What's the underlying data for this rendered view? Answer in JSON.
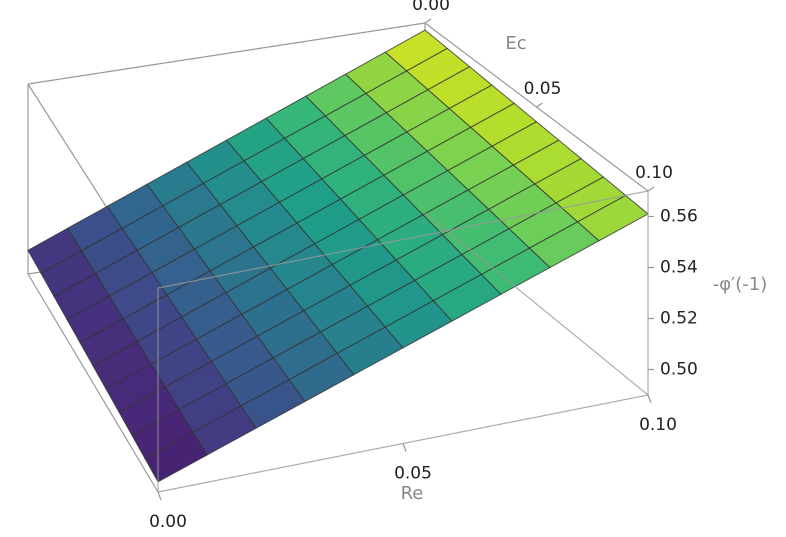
{
  "chart_data": {
    "type": "surface",
    "xlabel": "Re",
    "ylabel": "Ec",
    "zlabel": "-φ′(-1)",
    "x": [
      0,
      0.01,
      0.02,
      0.03,
      0.04,
      0.05,
      0.06,
      0.07,
      0.08,
      0.09,
      0.1
    ],
    "y": [
      0,
      0.01,
      0.02,
      0.03,
      0.04,
      0.05,
      0.06,
      0.07,
      0.08,
      0.09,
      0.1
    ],
    "z": [
      [
        0.5,
        0.5067,
        0.5134,
        0.5201,
        0.5268,
        0.5335,
        0.5402,
        0.5469,
        0.5536,
        0.5603,
        0.567
      ],
      [
        0.4994,
        0.5061,
        0.5128,
        0.5195,
        0.5262,
        0.5329,
        0.5396,
        0.5463,
        0.553,
        0.5597,
        0.5664
      ],
      [
        0.4988,
        0.5055,
        0.5122,
        0.5189,
        0.5256,
        0.5323,
        0.539,
        0.5457,
        0.5524,
        0.5591,
        0.5658
      ],
      [
        0.4982,
        0.5049,
        0.5116,
        0.5183,
        0.525,
        0.5317,
        0.5384,
        0.5451,
        0.5518,
        0.5585,
        0.5652
      ],
      [
        0.4976,
        0.5043,
        0.511,
        0.5177,
        0.5244,
        0.5311,
        0.5378,
        0.5445,
        0.5512,
        0.5579,
        0.5646
      ],
      [
        0.497,
        0.5037,
        0.5104,
        0.5171,
        0.5238,
        0.5305,
        0.5372,
        0.5439,
        0.5506,
        0.5573,
        0.564
      ],
      [
        0.4964,
        0.5031,
        0.5098,
        0.5165,
        0.5232,
        0.5299,
        0.5366,
        0.5433,
        0.55,
        0.5567,
        0.5634
      ],
      [
        0.4958,
        0.5025,
        0.5092,
        0.5159,
        0.5226,
        0.5293,
        0.536,
        0.5427,
        0.5494,
        0.5561,
        0.5628
      ],
      [
        0.4952,
        0.5019,
        0.5086,
        0.5153,
        0.522,
        0.5287,
        0.5354,
        0.5421,
        0.5488,
        0.5555,
        0.5622
      ],
      [
        0.4946,
        0.5013,
        0.508,
        0.5147,
        0.5214,
        0.5281,
        0.5348,
        0.5415,
        0.5482,
        0.5549,
        0.5616
      ],
      [
        0.494,
        0.5007,
        0.5074,
        0.5141,
        0.5208,
        0.5275,
        0.5342,
        0.5409,
        0.5476,
        0.5543,
        0.561
      ]
    ],
    "xlim": [
      0,
      0.1
    ],
    "ylim": [
      0,
      0.1
    ],
    "zlim": [
      0.49,
      0.57
    ],
    "xticks": [
      {
        "value": 0,
        "label": "0.00"
      },
      0.05,
      {
        "value": 0.1,
        "label": "0.10"
      }
    ],
    "yticks": [
      {
        "value": 0,
        "label": "0.00"
      },
      0.05,
      {
        "value": 0.1,
        "label": "0.10"
      }
    ],
    "zticks": [
      {
        "value": 0.5,
        "label": "0.50"
      },
      0.52,
      0.54,
      0.56
    ],
    "colormap": "viridis",
    "mesh": true
  }
}
